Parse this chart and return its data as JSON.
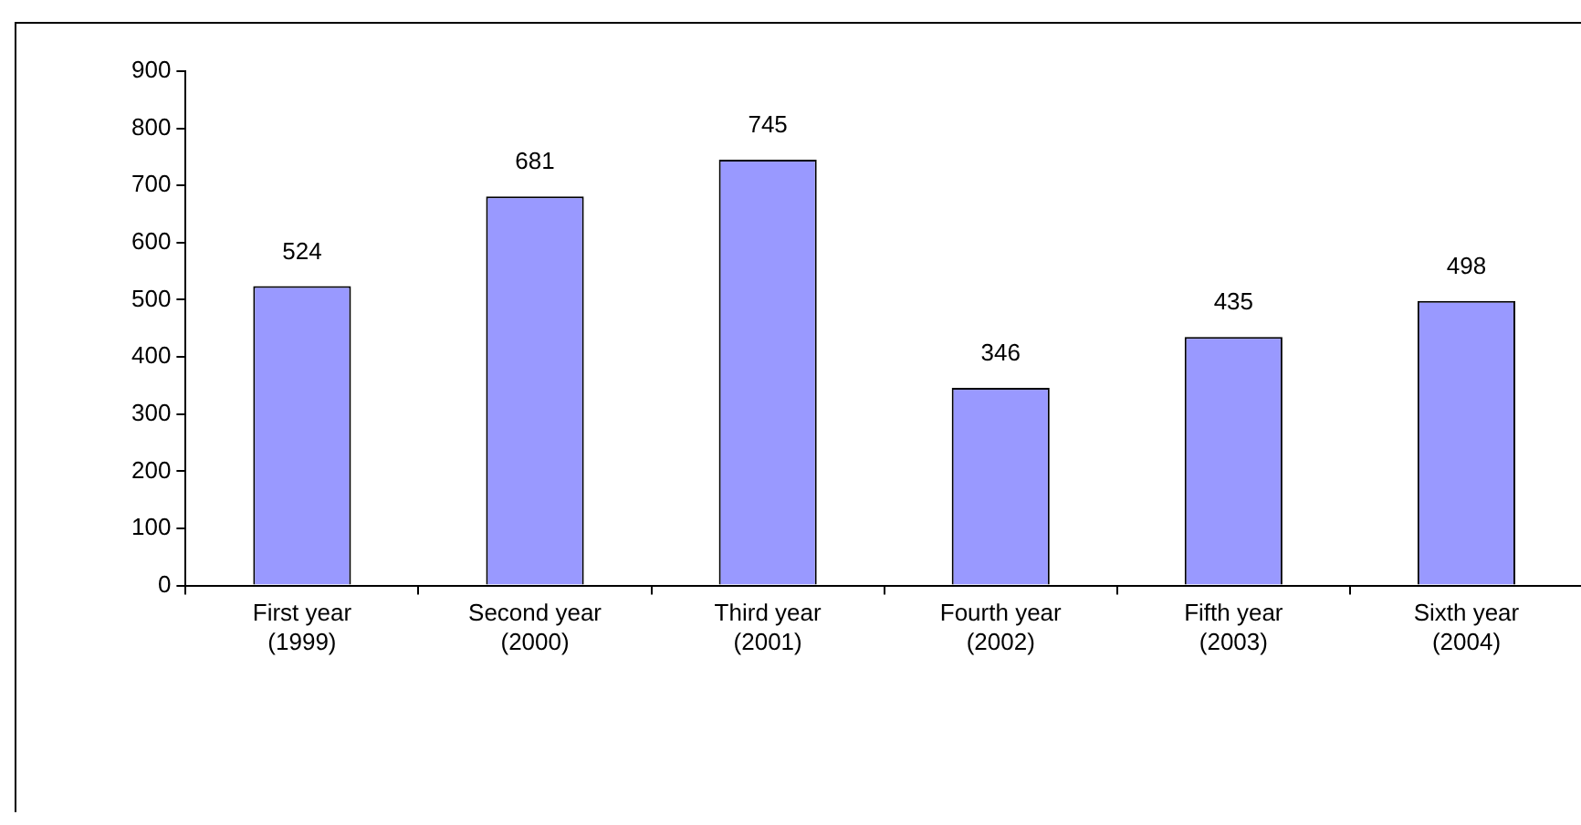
{
  "chart_data": {
    "type": "bar",
    "categories": [
      "First year\n(1999)",
      "Second year\n(2000)",
      "Third year\n(2001)",
      "Fourth year\n(2002)",
      "Fifth year\n(2003)",
      "Sixth year\n(2004)"
    ],
    "values": [
      524,
      681,
      745,
      346,
      435,
      498
    ],
    "color": "#9999ff",
    "ylim": [
      0,
      900
    ],
    "yticks": [
      0,
      100,
      200,
      300,
      400,
      500,
      600,
      700,
      800,
      900
    ],
    "grid": false,
    "legend": false,
    "data_labels": true
  }
}
